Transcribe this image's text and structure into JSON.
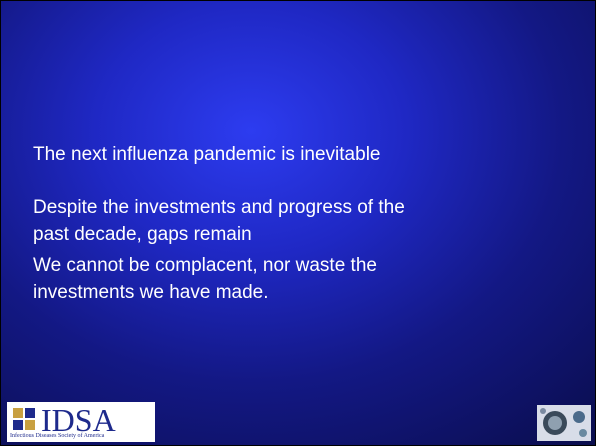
{
  "slide": {
    "paragraphs": [
      [
        "The next influenza pandemic is inevitable"
      ],
      [
        "Despite the investments and progress of the",
        "past decade, gaps remain"
      ],
      [
        "We cannot be complacent, nor waste the",
        "investments we have made."
      ]
    ],
    "logo": {
      "text": "IDSA",
      "subtitle": "Infectious Diseases Society of America"
    }
  }
}
